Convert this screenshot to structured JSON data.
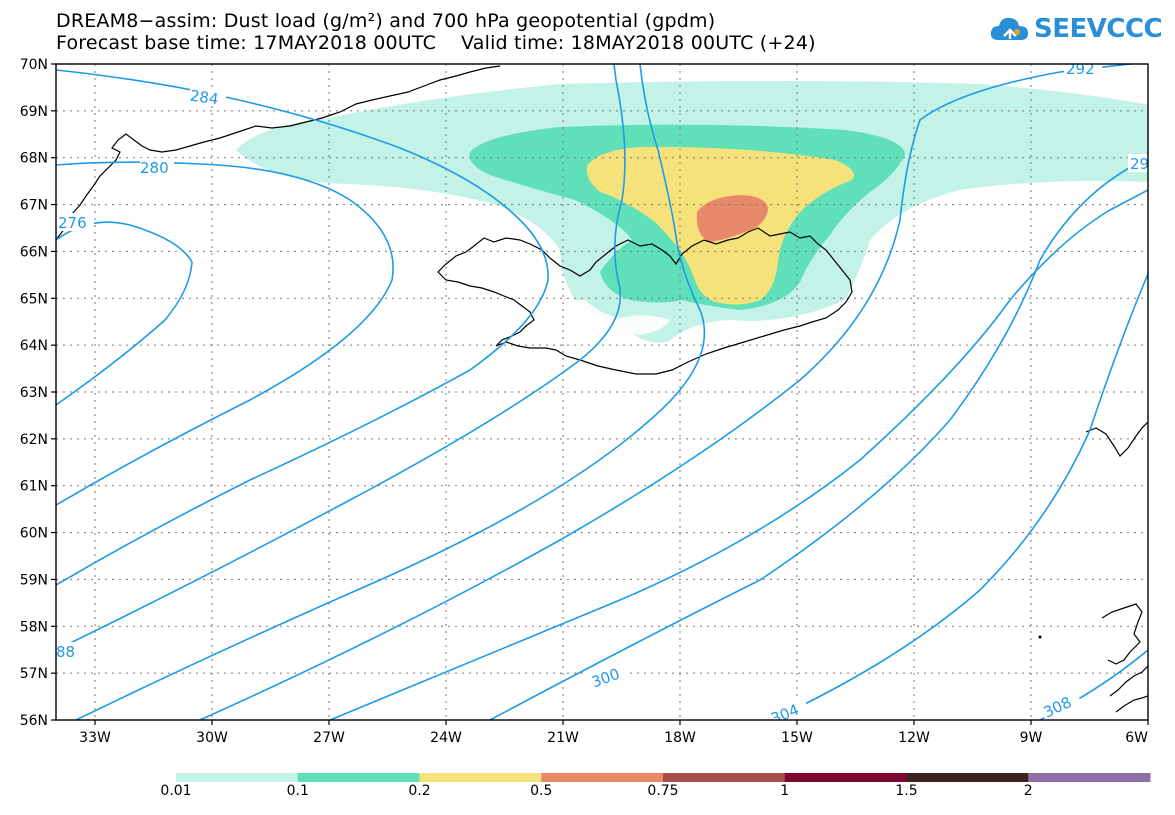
{
  "header": {
    "title_line1": "DREAM8−assim: Dust load (g/m²) and 700 hPa geopotential (gpdm)",
    "title_line2": "Forecast base time: 17MAY2018 00UTC    Valid time: 18MAY2018 00UTC (+24)"
  },
  "logo": {
    "text": "SEEVCCC",
    "icon": "cloud-icon",
    "color": "#2a8fd6"
  },
  "map": {
    "lat_labels": [
      "70N",
      "69N",
      "68N",
      "67N",
      "66N",
      "65N",
      "64N",
      "63N",
      "62N",
      "61N",
      "60N",
      "59N",
      "58N",
      "57N",
      "56N"
    ],
    "lon_labels": [
      "33W",
      "30W",
      "27W",
      "24W",
      "21W",
      "18W",
      "15W",
      "12W",
      "9W",
      "6W"
    ],
    "contour_labels": [
      "284",
      "280",
      "276",
      "292",
      "29",
      "300",
      "304",
      "308",
      "88"
    ],
    "contour_color": "#1e9be6"
  },
  "colorbar": {
    "labels": [
      "0.01",
      "0.1",
      "0.2",
      "0.5",
      "0.75",
      "1",
      "1.5",
      "2"
    ],
    "colors": [
      "#c3f2e6",
      "#5fe0b8",
      "#f5e27a",
      "#e8896a",
      "#a84d4a",
      "#7c0a2f",
      "#3b2420",
      "#8f6fa6"
    ]
  }
}
